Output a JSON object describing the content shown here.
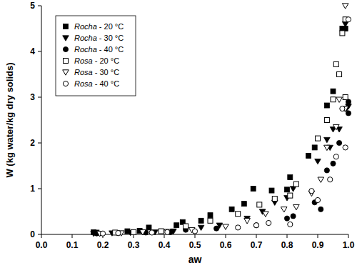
{
  "chart_data": {
    "type": "scatter",
    "x_label": "aw",
    "y_label": "W (kg water/kg dry solids)",
    "xlim": [
      0,
      1
    ],
    "ylim": [
      0,
      5
    ],
    "xticks": [
      {
        "value": 0,
        "label": "0.0"
      },
      0.1,
      0.2,
      0.3,
      0.4,
      0.5,
      0.6,
      0.7,
      0.8,
      0.9,
      {
        "value": 1,
        "label": "1.0"
      }
    ],
    "yticks": [
      0,
      1,
      2,
      3,
      4,
      5
    ],
    "grid": false,
    "legend": "top-left",
    "series": [
      {
        "name": "Rocha - 20 °C",
        "color": "#000000",
        "marker": "square",
        "x": [
          0.17,
          0.18,
          0.28,
          0.32,
          0.35,
          0.44,
          0.46,
          0.52,
          0.55,
          0.62,
          0.66,
          0.69,
          0.75,
          0.8,
          0.81,
          0.87,
          0.89,
          0.93,
          0.95,
          0.97,
          0.98,
          0.99
        ],
        "values": [
          0.05,
          0.04,
          0.07,
          0.08,
          0.15,
          0.2,
          0.27,
          0.3,
          0.42,
          0.55,
          0.67,
          1.0,
          0.96,
          0.98,
          1.25,
          1.72,
          1.9,
          2.82,
          3.13,
          3.5,
          4.5,
          4.5
        ]
      },
      {
        "name": "Rocha - 30 °C",
        "color": "#000000",
        "marker": "triangle-down",
        "x": [
          0.17,
          0.23,
          0.29,
          0.37,
          0.43,
          0.52,
          0.58,
          0.67,
          0.72,
          0.76,
          0.8,
          0.82,
          0.9,
          0.93,
          0.94,
          0.95,
          0.97,
          0.99,
          1.0
        ],
        "values": [
          0.02,
          0.03,
          0.04,
          0.05,
          0.07,
          0.15,
          0.2,
          0.35,
          0.5,
          0.7,
          0.8,
          1.0,
          1.6,
          2.07,
          1.9,
          2.3,
          2.3,
          4.6,
          2.8
        ]
      },
      {
        "name": "Rocha - 40 °C",
        "color": "#000000",
        "marker": "circle",
        "x": [
          0.18,
          0.25,
          0.34,
          0.42,
          0.47,
          0.57,
          0.7,
          0.8,
          0.82,
          0.89,
          0.91,
          0.93,
          0.95,
          0.97,
          0.99,
          1.0,
          1.0
        ],
        "values": [
          0.02,
          0.03,
          0.04,
          0.05,
          0.1,
          0.13,
          0.2,
          0.35,
          0.4,
          0.7,
          0.55,
          1.4,
          1.55,
          2.0,
          2.75,
          2.65,
          2.9
        ]
      },
      {
        "name": "Rosa - 20 °C",
        "color": "#000000",
        "marker": "square-open",
        "x": [
          0.24,
          0.3,
          0.39,
          0.47,
          0.55,
          0.64,
          0.71,
          0.76,
          0.81,
          0.83,
          0.9,
          0.93,
          0.95,
          0.96,
          0.97,
          0.98,
          0.99,
          0.99
        ],
        "values": [
          0.04,
          0.05,
          0.07,
          0.18,
          0.3,
          0.45,
          0.65,
          0.78,
          0.85,
          1.1,
          2.1,
          2.5,
          2.95,
          3.72,
          3.5,
          4.4,
          4.7,
          3.0
        ]
      },
      {
        "name": "Rosa - 30 °C",
        "color": "#000000",
        "marker": "triangle-down-open",
        "x": [
          0.19,
          0.26,
          0.33,
          0.41,
          0.49,
          0.6,
          0.67,
          0.73,
          0.79,
          0.83,
          0.88,
          0.91,
          0.93,
          0.96,
          0.97,
          0.99,
          0.99
        ],
        "values": [
          0.02,
          0.03,
          0.05,
          0.06,
          0.1,
          0.17,
          0.3,
          0.45,
          0.55,
          0.6,
          0.9,
          1.2,
          1.9,
          2.35,
          2.95,
          5.0,
          2.75
        ]
      },
      {
        "name": "Rosa - 40 °C",
        "color": "#000000",
        "marker": "circle-open",
        "x": [
          0.2,
          0.25,
          0.36,
          0.41,
          0.5,
          0.64,
          0.7,
          0.74,
          0.81,
          0.88,
          0.9,
          0.94,
          0.96,
          0.98,
          0.99,
          1.0
        ],
        "values": [
          0.02,
          0.03,
          0.04,
          0.05,
          0.07,
          0.15,
          0.2,
          0.25,
          0.22,
          0.95,
          0.75,
          1.2,
          1.7,
          2.75,
          1.9,
          4.7
        ]
      }
    ]
  }
}
